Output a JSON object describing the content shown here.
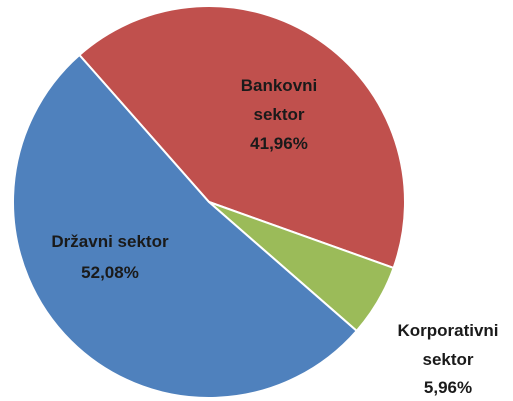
{
  "chart_data": {
    "type": "pie",
    "categories": [
      "Bankovni sektor",
      "Korporativni sektor",
      "Državni sektor"
    ],
    "values": [
      41.96,
      5.96,
      52.08
    ],
    "value_labels": [
      "41,96%",
      "5,96%",
      "52,08%"
    ],
    "colors": [
      "#c0504d",
      "#9bbb59",
      "#4f81bd"
    ]
  }
}
